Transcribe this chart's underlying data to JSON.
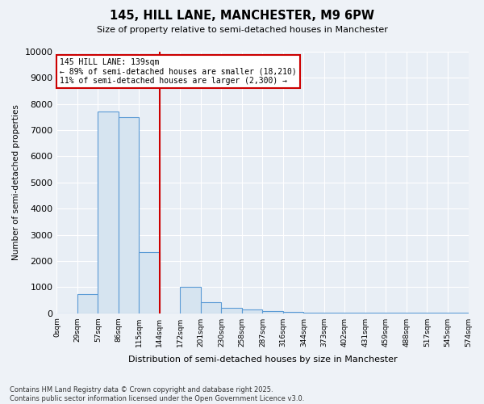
{
  "title": "145, HILL LANE, MANCHESTER, M9 6PW",
  "subtitle": "Size of property relative to semi-detached houses in Manchester",
  "xlabel": "Distribution of semi-detached houses by size in Manchester",
  "ylabel": "Number of semi-detached properties",
  "bin_labels": [
    "0sqm",
    "29sqm",
    "57sqm",
    "86sqm",
    "115sqm",
    "144sqm",
    "172sqm",
    "201sqm",
    "230sqm",
    "258sqm",
    "287sqm",
    "316sqm",
    "344sqm",
    "373sqm",
    "402sqm",
    "431sqm",
    "459sqm",
    "488sqm",
    "517sqm",
    "545sqm",
    "574sqm"
  ],
  "bar_heights": [
    0,
    730,
    7700,
    7500,
    2350,
    0,
    1000,
    430,
    200,
    130,
    90,
    50,
    30,
    20,
    10,
    10,
    5,
    5,
    5,
    5
  ],
  "bar_color": "#d6e4f0",
  "bar_edge_color": "#5b9bd5",
  "vline_x_label": "144sqm",
  "vline_color": "#cc0000",
  "vline_label_text": "145 HILL LANE: 139sqm",
  "annotation_line1": "← 89% of semi-detached houses are smaller (18,210)",
  "annotation_line2": "11% of semi-detached houses are larger (2,300) →",
  "annotation_box_color": "#cc0000",
  "ylim": [
    0,
    10000
  ],
  "yticks": [
    0,
    1000,
    2000,
    3000,
    4000,
    5000,
    6000,
    7000,
    8000,
    9000,
    10000
  ],
  "footer_line1": "Contains HM Land Registry data © Crown copyright and database right 2025.",
  "footer_line2": "Contains public sector information licensed under the Open Government Licence v3.0.",
  "bg_color": "#eef2f7",
  "grid_color": "#ffffff",
  "plot_bg_color": "#e8eef5"
}
